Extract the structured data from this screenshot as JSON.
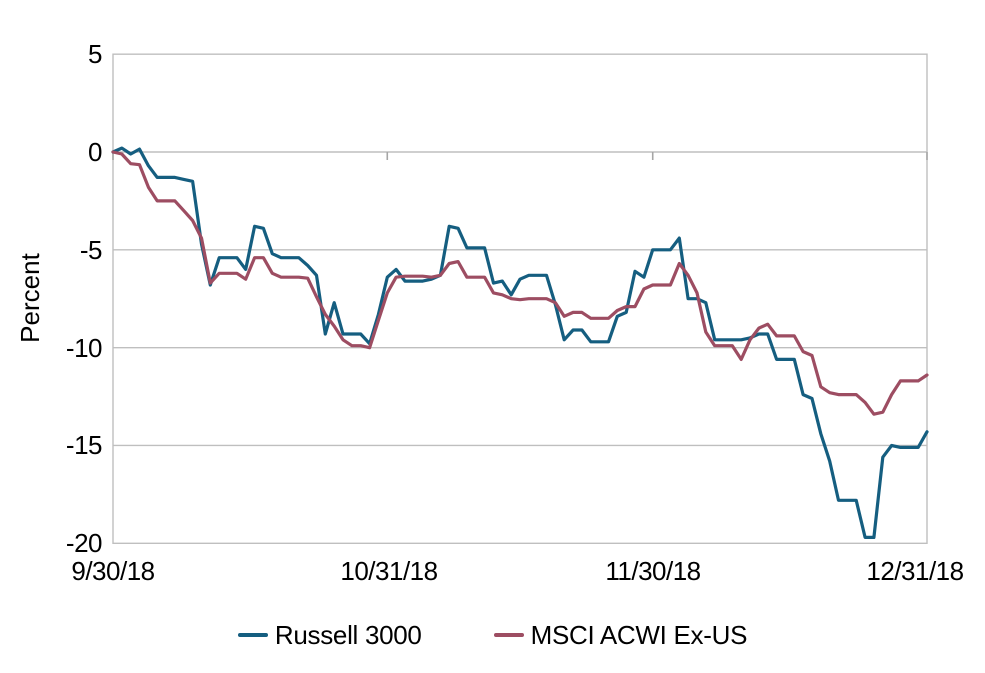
{
  "figure": {
    "background": "#ffffff",
    "grid_color": "#bfbfbf",
    "tick_color": "#a6a6a6"
  },
  "y_axis": {
    "title": "Percent",
    "ticks": [
      "5",
      "0",
      "-5",
      "-10",
      "-15",
      "-20"
    ],
    "max": 5,
    "min": -20,
    "step": 5
  },
  "x_axis": {
    "ticks": [
      "9/30/18",
      "10/31/18",
      "11/30/18",
      "12/31/18"
    ],
    "tick_days": [
      0,
      31,
      61,
      92
    ],
    "total_days": 92
  },
  "legend": [
    {
      "label": "Russell 3000",
      "color": "#155E80"
    },
    {
      "label": "MSCI ACWI Ex-US",
      "color": "#9D4D62"
    }
  ],
  "chart_data": {
    "type": "line",
    "title": "",
    "xlabel": "",
    "ylabel": "Percent",
    "ylim": [
      -20,
      5
    ],
    "grid": "horizontal",
    "legend_position": "bottom",
    "x_unit": "calendar days from 9/30/18 (index 0) to 12/31/18 (index 92); weekends/holidays carry forward",
    "x_tick_labels": [
      "9/30/18",
      "10/31/18",
      "11/30/18",
      "12/31/18"
    ],
    "series": [
      {
        "name": "Russell 3000",
        "color": "#155E80",
        "values": [
          0.0,
          0.2,
          -0.1,
          0.15,
          -0.7,
          -1.3,
          -1.3,
          -1.3,
          -1.4,
          -1.5,
          -4.7,
          -6.8,
          -5.4,
          -5.4,
          -5.4,
          -6.0,
          -3.8,
          -3.9,
          -5.2,
          -5.4,
          -5.4,
          -5.4,
          -5.8,
          -6.3,
          -9.3,
          -7.7,
          -9.3,
          -9.3,
          -9.3,
          -9.8,
          -8.3,
          -6.4,
          -6.0,
          -6.6,
          -6.6,
          -6.6,
          -6.5,
          -6.3,
          -3.8,
          -3.9,
          -4.9,
          -4.9,
          -4.9,
          -6.7,
          -6.6,
          -7.3,
          -6.5,
          -6.3,
          -6.3,
          -6.3,
          -7.8,
          -9.6,
          -9.1,
          -9.1,
          -9.7,
          -9.7,
          -9.7,
          -8.4,
          -8.2,
          -6.1,
          -6.4,
          -5.0,
          -5.0,
          -5.0,
          -4.4,
          -7.5,
          -7.5,
          -7.7,
          -9.6,
          -9.6,
          -9.6,
          -9.6,
          -9.5,
          -9.3,
          -9.3,
          -10.6,
          -10.6,
          -10.6,
          -12.4,
          -12.6,
          -14.4,
          -15.8,
          -17.8,
          -17.8,
          -17.8,
          -19.7,
          -19.7,
          -15.6,
          -15.0,
          -15.1,
          -15.1,
          -15.1,
          -14.3
        ]
      },
      {
        "name": "MSCI ACWI Ex-US",
        "color": "#9D4D62",
        "values": [
          0.0,
          -0.1,
          -0.6,
          -0.65,
          -1.8,
          -2.5,
          -2.5,
          -2.5,
          -3.0,
          -3.5,
          -4.4,
          -6.7,
          -6.2,
          -6.2,
          -6.2,
          -6.5,
          -5.4,
          -5.4,
          -6.2,
          -6.4,
          -6.4,
          -6.4,
          -6.45,
          -7.4,
          -8.3,
          -8.9,
          -9.6,
          -9.9,
          -9.9,
          -10.0,
          -8.6,
          -7.2,
          -6.4,
          -6.35,
          -6.35,
          -6.35,
          -6.4,
          -6.3,
          -5.7,
          -5.6,
          -6.4,
          -6.4,
          -6.4,
          -7.2,
          -7.3,
          -7.5,
          -7.55,
          -7.5,
          -7.5,
          -7.5,
          -7.7,
          -8.4,
          -8.2,
          -8.2,
          -8.5,
          -8.5,
          -8.5,
          -8.1,
          -7.9,
          -7.9,
          -7.0,
          -6.8,
          -6.8,
          -6.8,
          -5.7,
          -6.3,
          -7.2,
          -9.2,
          -9.9,
          -9.9,
          -9.9,
          -10.6,
          -9.6,
          -9.0,
          -8.8,
          -9.4,
          -9.4,
          -9.4,
          -10.2,
          -10.4,
          -12.0,
          -12.3,
          -12.4,
          -12.4,
          -12.4,
          -12.8,
          -13.4,
          -13.3,
          -12.4,
          -11.7,
          -11.7,
          -11.7,
          -11.4
        ]
      }
    ]
  }
}
